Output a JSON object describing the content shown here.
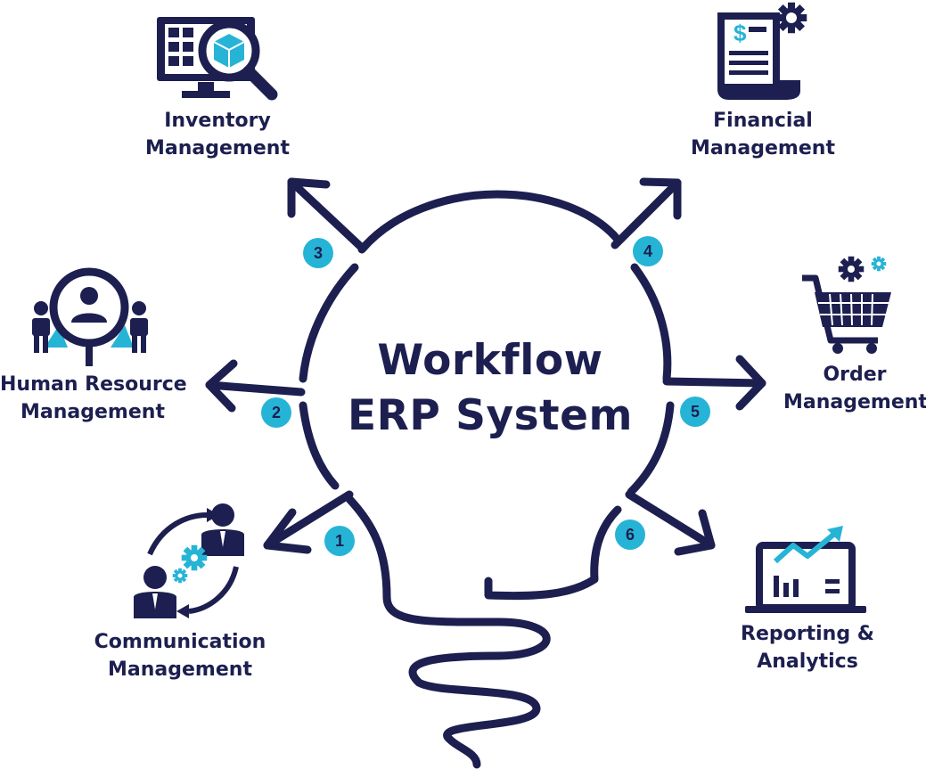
{
  "diagram": {
    "title_line1": "Workflow",
    "title_line2": "ERP System",
    "colors": {
      "navy": "#1c1f4f",
      "accent": "#26b4d6"
    },
    "modules": [
      {
        "number": "1",
        "line1": "Communication",
        "line2": "Management",
        "icon": "communication-icon"
      },
      {
        "number": "2",
        "line1": "Human Resource",
        "line2": "Management",
        "icon": "human-resource-icon"
      },
      {
        "number": "3",
        "line1": "Inventory",
        "line2": "Management",
        "icon": "inventory-icon"
      },
      {
        "number": "4",
        "line1": "Financial",
        "line2": "Management",
        "icon": "financial-icon"
      },
      {
        "number": "5",
        "line1": "Order",
        "line2": "Management",
        "icon": "order-cart-icon"
      },
      {
        "number": "6",
        "line1": "Reporting &",
        "line2": "Analytics",
        "icon": "reporting-analytics-icon"
      }
    ]
  }
}
